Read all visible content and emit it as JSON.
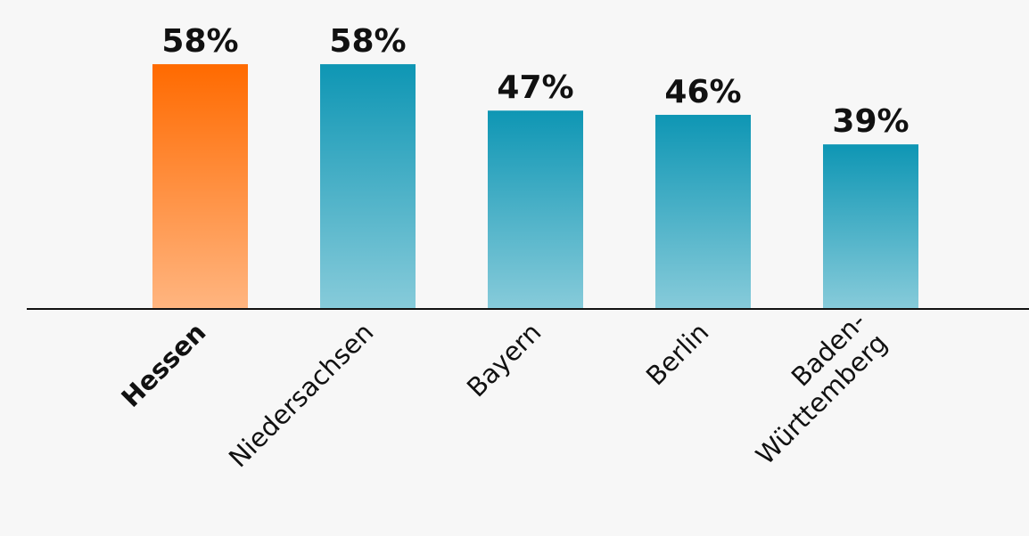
{
  "chart_data": {
    "type": "bar",
    "categories": [
      "Hessen",
      "Niedersachsen",
      "Bayern",
      "Berlin",
      "Baden-Württemberg"
    ],
    "values": [
      58,
      58,
      47,
      46,
      39
    ],
    "value_labels": [
      "58%",
      "58%",
      "47%",
      "46%",
      "39%"
    ],
    "colors": [
      "#ff6a00",
      "#0e96b4",
      "#0e96b4",
      "#0e96b4",
      "#0e96b4"
    ],
    "highlight": 0,
    "ylim": [
      0,
      73
    ]
  }
}
